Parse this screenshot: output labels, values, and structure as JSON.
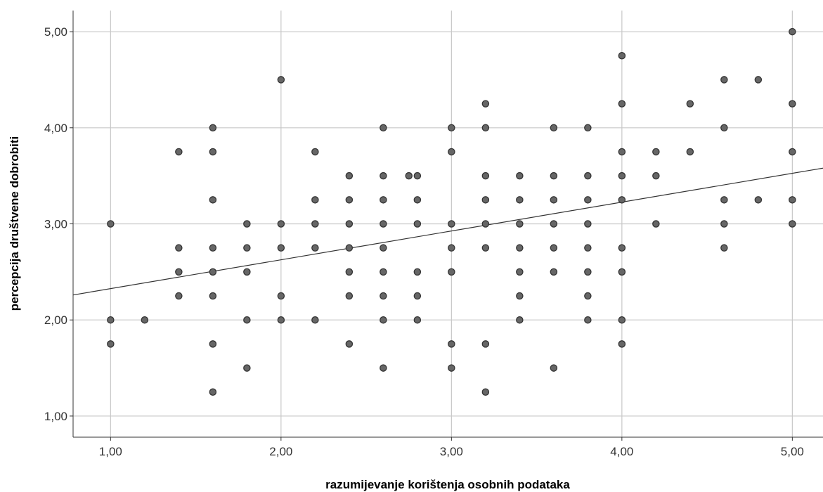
{
  "chart_data": {
    "type": "scatter",
    "title": "",
    "xlabel": "razumijevanje korištenja osobnih podataka",
    "ylabel": "percepcija društvene dobrobiti",
    "xlim": [
      0.78,
      5.18
    ],
    "ylim": [
      0.78,
      5.22
    ],
    "x_ticks": [
      1,
      2,
      3,
      4,
      5
    ],
    "y_ticks": [
      1,
      2,
      3,
      4,
      5
    ],
    "x_tick_labels": [
      "1,00",
      "2,00",
      "3,00",
      "4,00",
      "5,00"
    ],
    "y_tick_labels": [
      "1,00",
      "2,00",
      "3,00",
      "4,00",
      "5,00"
    ],
    "grid": true,
    "fit_line": {
      "x": [
        0.78,
        5.18
      ],
      "y": [
        2.26,
        3.58
      ]
    },
    "colors": {
      "marker_fill": "#666666",
      "marker_edge": "#333333",
      "grid": "#c8c8c8",
      "line": "#333333"
    },
    "series": [
      {
        "points": [
          [
            1.0,
            3.0
          ],
          [
            1.0,
            2.0
          ],
          [
            1.0,
            1.75
          ],
          [
            1.2,
            2.0
          ],
          [
            1.4,
            3.75
          ],
          [
            1.4,
            2.75
          ],
          [
            1.4,
            2.5
          ],
          [
            1.4,
            2.25
          ],
          [
            1.6,
            4.0
          ],
          [
            1.6,
            3.75
          ],
          [
            1.6,
            3.25
          ],
          [
            1.6,
            2.75
          ],
          [
            1.6,
            2.5
          ],
          [
            1.6,
            2.25
          ],
          [
            1.6,
            1.75
          ],
          [
            1.6,
            1.25
          ],
          [
            1.8,
            3.0
          ],
          [
            1.8,
            2.75
          ],
          [
            1.8,
            2.5
          ],
          [
            1.8,
            2.0
          ],
          [
            1.8,
            1.5
          ],
          [
            2.0,
            4.5
          ],
          [
            2.0,
            3.0
          ],
          [
            2.0,
            2.75
          ],
          [
            2.0,
            2.25
          ],
          [
            2.0,
            2.0
          ],
          [
            2.2,
            3.75
          ],
          [
            2.2,
            3.25
          ],
          [
            2.2,
            3.0
          ],
          [
            2.2,
            2.75
          ],
          [
            2.2,
            2.0
          ],
          [
            2.4,
            3.5
          ],
          [
            2.4,
            3.25
          ],
          [
            2.4,
            3.0
          ],
          [
            2.4,
            2.75
          ],
          [
            2.4,
            2.5
          ],
          [
            2.4,
            2.25
          ],
          [
            2.4,
            1.75
          ],
          [
            2.6,
            4.0
          ],
          [
            2.6,
            3.5
          ],
          [
            2.6,
            3.25
          ],
          [
            2.6,
            3.0
          ],
          [
            2.6,
            2.75
          ],
          [
            2.6,
            2.5
          ],
          [
            2.6,
            2.25
          ],
          [
            2.6,
            2.0
          ],
          [
            2.6,
            1.5
          ],
          [
            2.75,
            3.5
          ],
          [
            2.8,
            3.5
          ],
          [
            2.8,
            3.25
          ],
          [
            2.8,
            3.0
          ],
          [
            2.8,
            2.5
          ],
          [
            2.8,
            2.25
          ],
          [
            2.8,
            2.0
          ],
          [
            3.0,
            4.0
          ],
          [
            3.0,
            3.75
          ],
          [
            3.0,
            3.0
          ],
          [
            3.0,
            2.75
          ],
          [
            3.0,
            2.5
          ],
          [
            3.0,
            1.75
          ],
          [
            3.0,
            1.5
          ],
          [
            3.2,
            4.25
          ],
          [
            3.2,
            4.0
          ],
          [
            3.2,
            3.5
          ],
          [
            3.2,
            3.25
          ],
          [
            3.2,
            3.0
          ],
          [
            3.2,
            2.75
          ],
          [
            3.2,
            1.75
          ],
          [
            3.2,
            1.25
          ],
          [
            3.4,
            3.5
          ],
          [
            3.4,
            3.25
          ],
          [
            3.4,
            3.0
          ],
          [
            3.4,
            2.75
          ],
          [
            3.4,
            2.5
          ],
          [
            3.4,
            2.25
          ],
          [
            3.4,
            2.0
          ],
          [
            3.6,
            4.0
          ],
          [
            3.6,
            3.5
          ],
          [
            3.6,
            3.25
          ],
          [
            3.6,
            3.0
          ],
          [
            3.6,
            2.75
          ],
          [
            3.6,
            2.5
          ],
          [
            3.6,
            1.5
          ],
          [
            3.8,
            4.0
          ],
          [
            3.8,
            3.5
          ],
          [
            3.8,
            3.25
          ],
          [
            3.8,
            3.0
          ],
          [
            3.8,
            2.75
          ],
          [
            3.8,
            2.5
          ],
          [
            3.8,
            2.25
          ],
          [
            3.8,
            2.0
          ],
          [
            4.0,
            4.75
          ],
          [
            4.0,
            4.25
          ],
          [
            4.0,
            3.75
          ],
          [
            4.0,
            3.5
          ],
          [
            4.0,
            3.25
          ],
          [
            4.0,
            2.75
          ],
          [
            4.0,
            2.5
          ],
          [
            4.0,
            2.0
          ],
          [
            4.0,
            1.75
          ],
          [
            4.2,
            3.75
          ],
          [
            4.2,
            3.5
          ],
          [
            4.2,
            3.0
          ],
          [
            4.4,
            4.25
          ],
          [
            4.4,
            3.75
          ],
          [
            4.6,
            4.5
          ],
          [
            4.6,
            4.0
          ],
          [
            4.6,
            3.25
          ],
          [
            4.6,
            3.0
          ],
          [
            4.6,
            2.75
          ],
          [
            4.8,
            4.5
          ],
          [
            4.8,
            3.25
          ],
          [
            5.0,
            5.0
          ],
          [
            5.0,
            4.25
          ],
          [
            5.0,
            3.75
          ],
          [
            5.0,
            3.25
          ],
          [
            5.0,
            3.0
          ]
        ]
      }
    ]
  }
}
